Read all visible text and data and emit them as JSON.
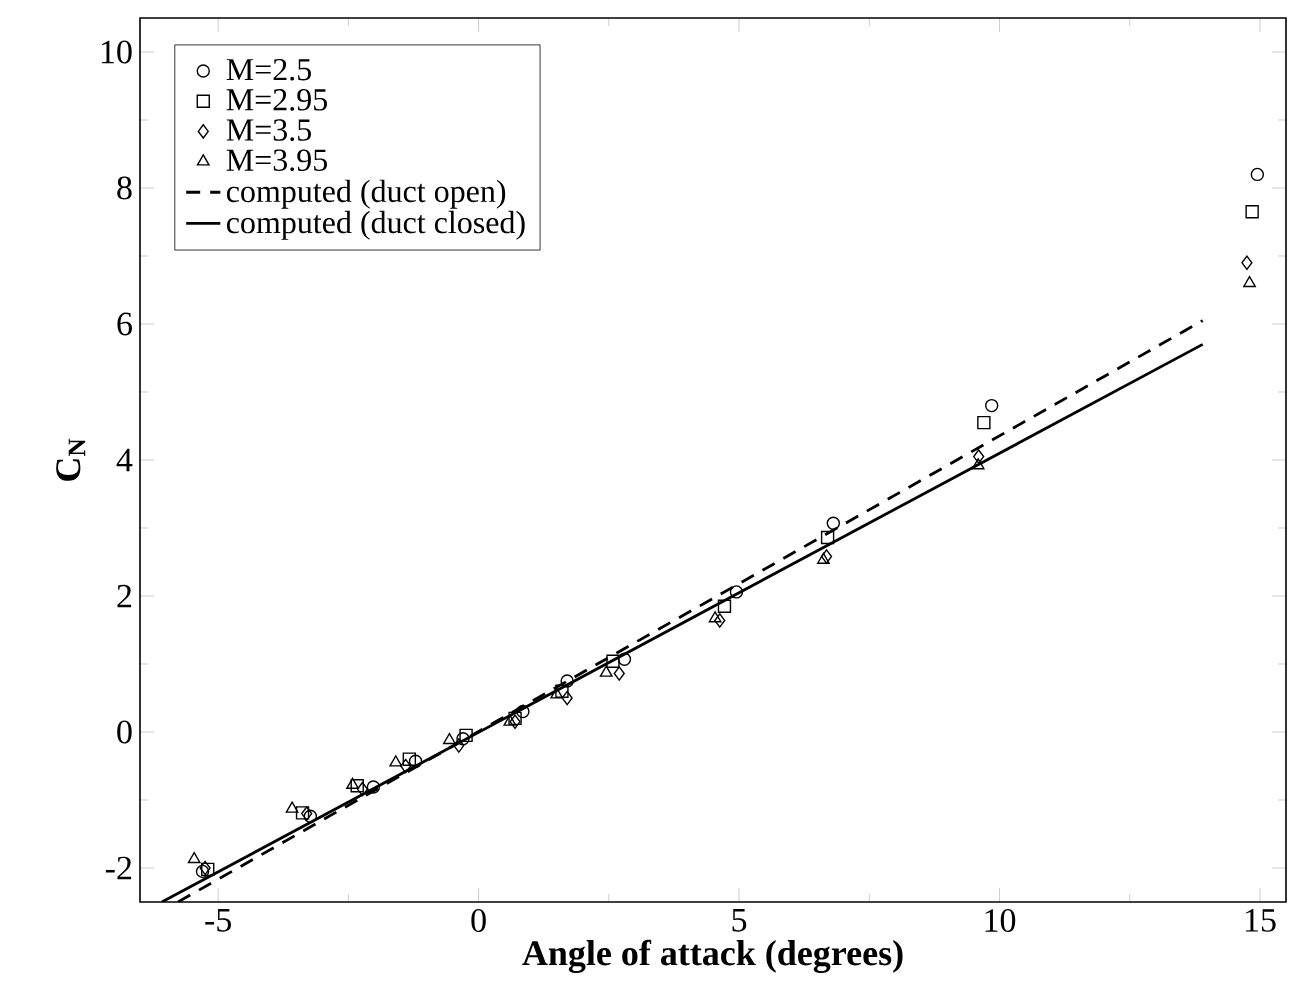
{
  "chart_data": {
    "type": "scatter",
    "xlabel": "Angle of attack (degrees)",
    "ylabel": "C$_{N}$",
    "xlim": [
      -6.5,
      15.5
    ],
    "ylim": [
      -2.5,
      10.5
    ],
    "xticks": [
      -5,
      0,
      5,
      10,
      15
    ],
    "yticks": [
      -2,
      0,
      2,
      4,
      6,
      8,
      10
    ],
    "legend": "top left",
    "grid": false,
    "series": [
      {
        "name": "M=2.5",
        "color": "#000000",
        "marker": "circle",
        "x": [
          -5.3,
          -3.23,
          -2.02,
          -1.21,
          -0.3,
          0.85,
          1.7,
          2.8,
          4.95,
          6.81,
          9.85,
          14.95
        ],
        "values": [
          -2.05,
          -1.24,
          -0.81,
          -0.43,
          -0.1,
          0.3,
          0.75,
          1.07,
          2.06,
          3.07,
          4.8,
          8.2
        ]
      },
      {
        "name": "M=2.95",
        "color": "#000000",
        "marker": "square",
        "x": [
          -5.2,
          -3.38,
          -2.33,
          -1.33,
          -0.24,
          0.7,
          1.6,
          2.58,
          4.72,
          6.7,
          9.7,
          14.85
        ],
        "values": [
          -2.02,
          -1.19,
          -0.79,
          -0.4,
          -0.05,
          0.2,
          0.6,
          1.04,
          1.85,
          2.86,
          4.55,
          7.65
        ]
      },
      {
        "name": "M=3.5",
        "color": "#000000",
        "marker": "diamond",
        "x": [
          -5.25,
          -3.3,
          -2.23,
          -1.4,
          -0.38,
          0.7,
          1.7,
          2.7,
          4.63,
          6.68,
          9.6,
          14.75
        ],
        "values": [
          -2.0,
          -1.2,
          -0.84,
          -0.5,
          -0.2,
          0.15,
          0.5,
          0.86,
          1.64,
          2.58,
          4.05,
          6.9
        ]
      },
      {
        "name": "M=3.95",
        "color": "#000000",
        "marker": "triangle",
        "x": [
          -5.46,
          -3.58,
          -2.42,
          -1.59,
          -0.56,
          0.6,
          1.5,
          2.45,
          4.54,
          6.62,
          9.59,
          14.8
        ],
        "values": [
          -1.87,
          -1.13,
          -0.78,
          -0.45,
          -0.12,
          0.15,
          0.55,
          0.87,
          1.67,
          2.53,
          3.92,
          6.6
        ]
      },
      {
        "name": "computed (duct open)",
        "type": "line",
        "color": "#000000",
        "line_style": "dashed",
        "marker": "none",
        "x": [
          -5.77,
          13.9
        ],
        "values": [
          -2.5,
          6.05
        ]
      },
      {
        "name": "computed (duct closed)",
        "type": "line",
        "color": "#000000",
        "line_style": "solid",
        "marker": "none",
        "x": [
          -6.08,
          13.9
        ],
        "values": [
          -2.5,
          5.7
        ]
      }
    ]
  }
}
